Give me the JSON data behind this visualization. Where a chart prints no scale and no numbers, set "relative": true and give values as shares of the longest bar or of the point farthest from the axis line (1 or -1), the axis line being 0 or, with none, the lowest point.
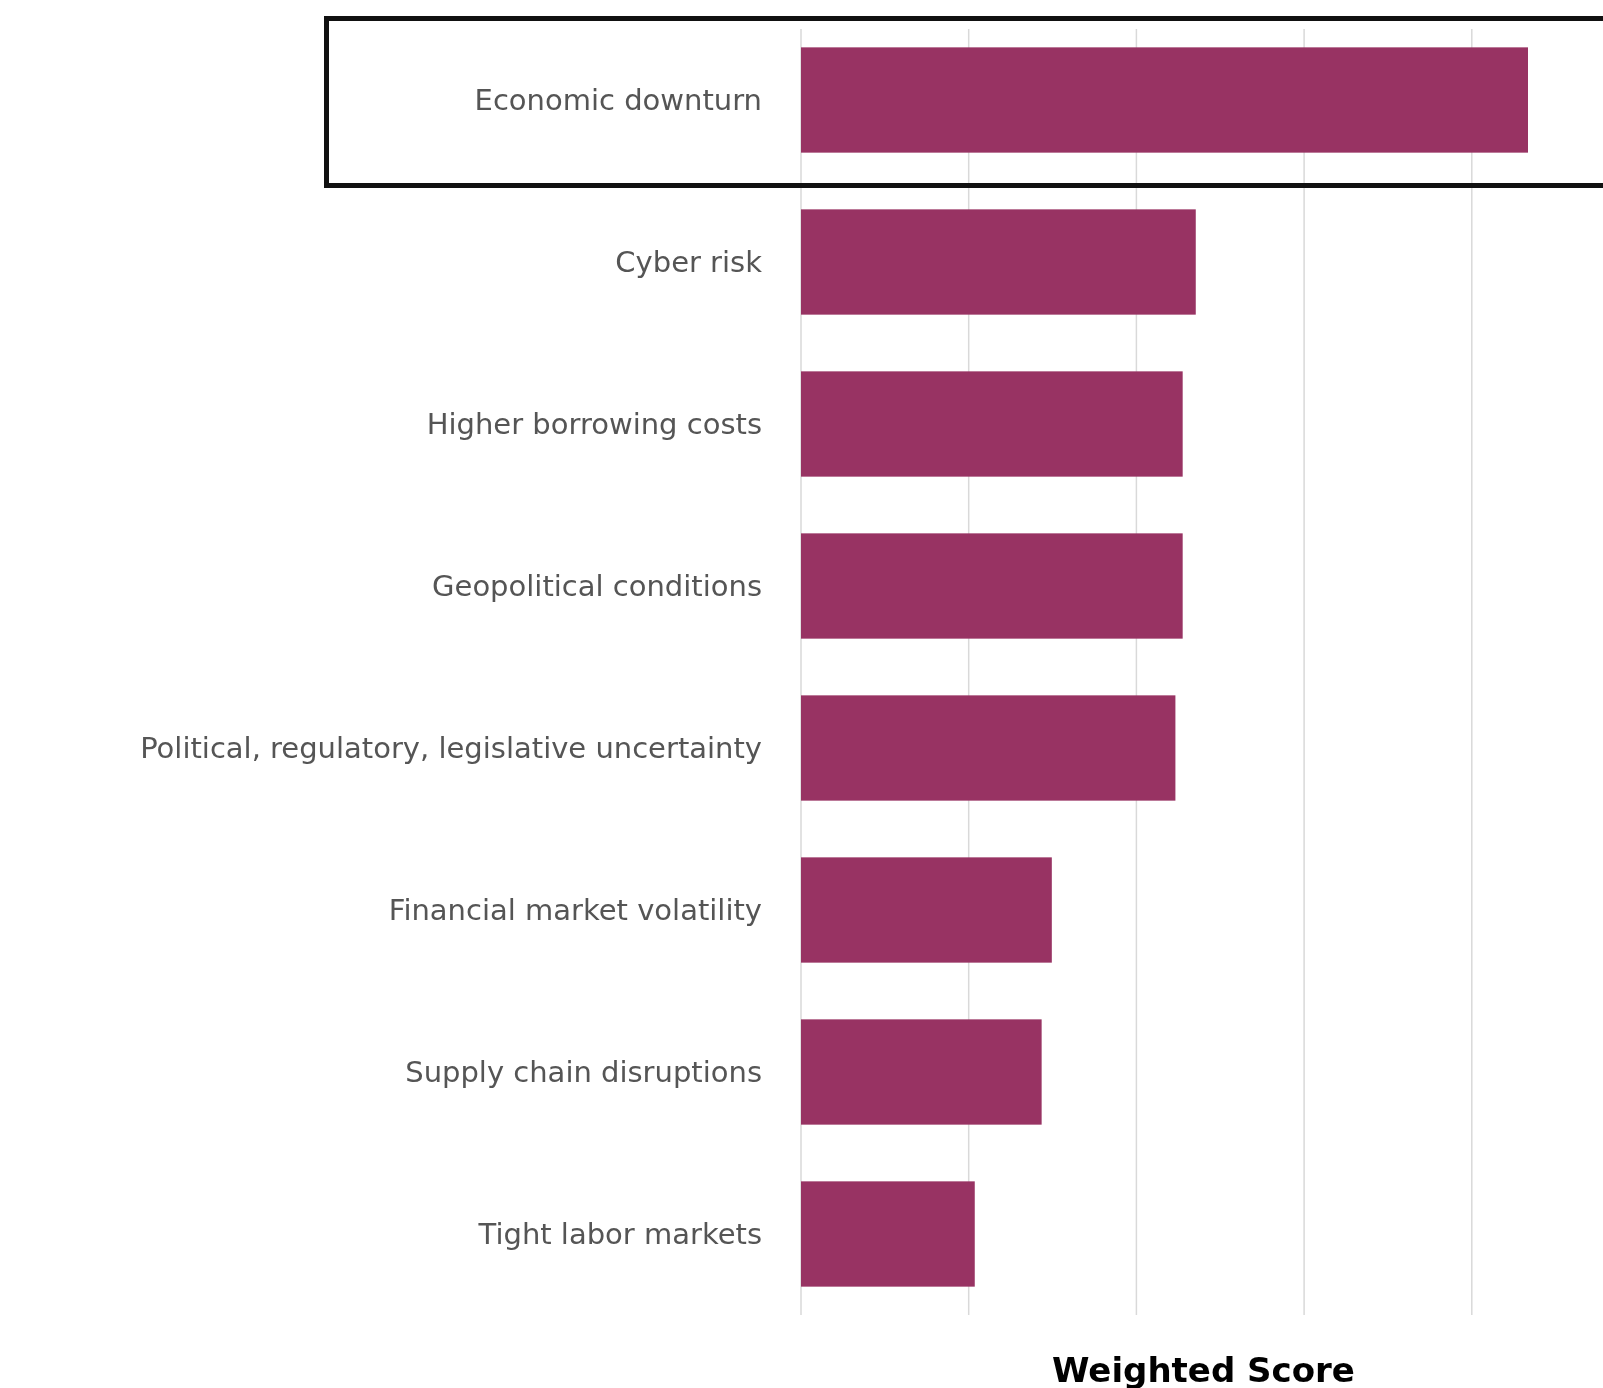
{
  "chart_data": {
    "type": "bar",
    "orientation": "horizontal",
    "relative": true,
    "xlabel": "Weighted Score",
    "categories": [
      "Economic downturn",
      "Cyber risk",
      "Higher borrowing costs",
      "Geopolitical conditions",
      "Political, regulatory, legislative uncertainty",
      "Financial market volatility",
      "Supply chain disruptions",
      "Tight labor markets"
    ],
    "values": [
      1,
      0.543,
      0.525,
      0.525,
      0.515,
      0.345,
      0.331,
      0.239
    ],
    "color": "#983363",
    "grid": "x"
  }
}
